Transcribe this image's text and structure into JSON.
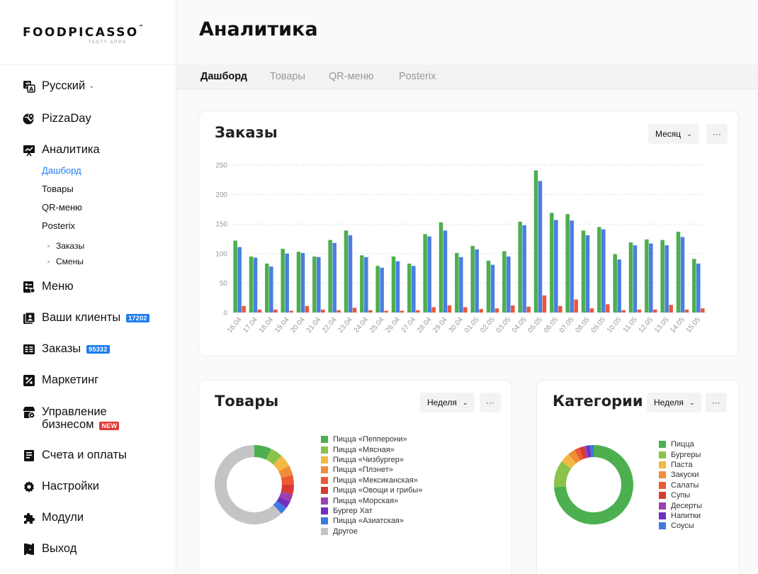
{
  "brand": {
    "name": "FOODPICASSO",
    "tm": "™",
    "tagline": "TASTY APPS"
  },
  "page_title": "Аналитика",
  "sidebar": {
    "language": "Русский",
    "restaurant": "PizzaDay",
    "analytics": "Аналитика",
    "analytics_sub": [
      "Дашборд",
      "Товары",
      "QR-меню",
      "Posterix"
    ],
    "posterix_sub": [
      "Заказы",
      "Смены"
    ],
    "menu": "Меню",
    "clients": "Ваши клиенты",
    "clients_badge": "17202",
    "orders": "Заказы",
    "orders_badge": "95332",
    "marketing": "Маркетинг",
    "business_line1": "Управление",
    "business_line2": "бизнесом",
    "business_badge": "NEW",
    "billing": "Счета и оплаты",
    "settings": "Настройки",
    "modules": "Модули",
    "logout": "Выход"
  },
  "tabs": [
    "Дашборд",
    "Товары",
    "QR-меню",
    "Posterix"
  ],
  "orders_card": {
    "title": "Заказы",
    "period": "Месяц",
    "more": "···"
  },
  "products_card": {
    "title": "Товары",
    "period": "Неделя",
    "more": "···"
  },
  "categories_card": {
    "title": "Категории",
    "period": "Неделя",
    "more": "···"
  },
  "colors": {
    "green": "#4caf50",
    "blue": "#4a7fe0",
    "red": "#e9573f",
    "accent": "#1e7ef0"
  },
  "chart_data": [
    {
      "type": "bar",
      "title": "Заказы",
      "categories": [
        "16.04",
        "17.04",
        "18.04",
        "19.04",
        "20.04",
        "21.04",
        "22.04",
        "23.04",
        "24.04",
        "25.04",
        "26.04",
        "27.04",
        "28.04",
        "29.04",
        "30.04",
        "01.05",
        "02.05",
        "03.05",
        "04.05",
        "05.05",
        "06.05",
        "07.05",
        "08.05",
        "09.05",
        "10.05",
        "11.05",
        "12.05",
        "13.05",
        "14.05",
        "15.05"
      ],
      "highlight_categories": [
        "16.04",
        "22.04",
        "23.04",
        "29.04",
        "30.04",
        "06.05",
        "07.05",
        "13.05",
        "14.05"
      ],
      "ylim": [
        0,
        250
      ],
      "yticks": [
        0,
        50,
        100,
        150,
        200,
        250
      ],
      "grid": true,
      "series": [
        {
          "color": "#4caf50",
          "values": [
            122,
            95,
            83,
            108,
            103,
            95,
            123,
            139,
            97,
            79,
            95,
            83,
            133,
            153,
            101,
            113,
            88,
            104,
            154,
            241,
            169,
            167,
            139,
            145,
            99,
            119,
            124,
            123,
            137,
            91
          ]
        },
        {
          "color": "#4a7fe0",
          "values": [
            111,
            93,
            78,
            100,
            101,
            94,
            118,
            131,
            94,
            76,
            87,
            79,
            129,
            139,
            94,
            107,
            81,
            95,
            148,
            223,
            157,
            156,
            131,
            141,
            90,
            114,
            117,
            114,
            128,
            83
          ]
        },
        {
          "color": "#e9573f",
          "values": [
            11,
            5,
            5,
            3,
            11,
            5,
            4,
            8,
            4,
            3,
            3,
            4,
            9,
            12,
            9,
            6,
            7,
            12,
            10,
            29,
            11,
            22,
            7,
            14,
            4,
            5,
            5,
            13,
            5,
            7
          ]
        }
      ]
    },
    {
      "type": "pie",
      "title": "Товары",
      "labels": [
        "Пицца «Пепперони»",
        "Пицца «Мясная»",
        "Пицца «Чизбургер»",
        "Пицца «Плэнет»",
        "Пицца «Мексиканская»",
        "Пицца «Овощи и грибы»",
        "Пицца «Морская»",
        "Бургер Хат",
        "Пицца «Азиатская»",
        "Другое"
      ],
      "values": [
        7,
        5,
        5,
        4,
        4,
        4,
        3,
        3,
        3,
        62
      ],
      "colors": [
        "#4caf50",
        "#8bc34a",
        "#f4b942",
        "#f08c3a",
        "#ea5b35",
        "#d83a32",
        "#9c3fb0",
        "#6f2fc0",
        "#3f7ae0",
        "#c4c4c4"
      ]
    },
    {
      "type": "pie",
      "title": "Категории",
      "labels": [
        "Пицца",
        "Бургеры",
        "Паста",
        "Закуски",
        "Салаты",
        "Супы",
        "Десерты",
        "Напитки",
        "Соусы"
      ],
      "values": [
        74,
        11,
        4,
        3,
        2,
        2,
        1,
        1.5,
        1.5
      ],
      "colors": [
        "#4caf50",
        "#8bc34a",
        "#f4b942",
        "#f08c3a",
        "#ea5b35",
        "#d83a32",
        "#9c3fb0",
        "#6f2fc0",
        "#3f7ae0"
      ]
    }
  ]
}
